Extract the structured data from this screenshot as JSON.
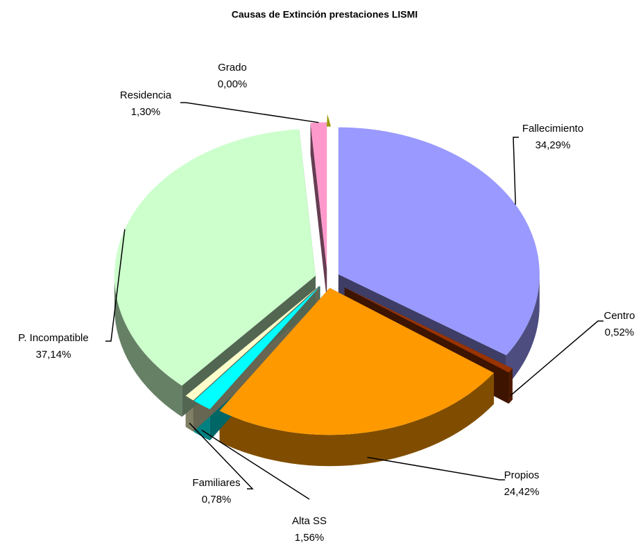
{
  "chart_data": {
    "type": "pie",
    "title": "Causas de Extinción prestaciones LISMI",
    "categories": [
      "Fallecimiento",
      "Centro",
      "Propios",
      "Alta SS",
      "Familiares",
      "P. Incompatible",
      "Residencia",
      "Grado"
    ],
    "values": [
      34.29,
      0.52,
      24.42,
      1.56,
      0.78,
      37.14,
      1.3,
      0.0
    ],
    "value_labels": [
      "34,29%",
      "0,52%",
      "24,42%",
      "1,56%",
      "0,78%",
      "37,14%",
      "1,30%",
      "0,00%"
    ],
    "colors": [
      "#9999ff",
      "#993300",
      "#ff9900",
      "#00ffff",
      "#ffffcc",
      "#ccffcc",
      "#ff99cc",
      "#999900"
    ]
  }
}
